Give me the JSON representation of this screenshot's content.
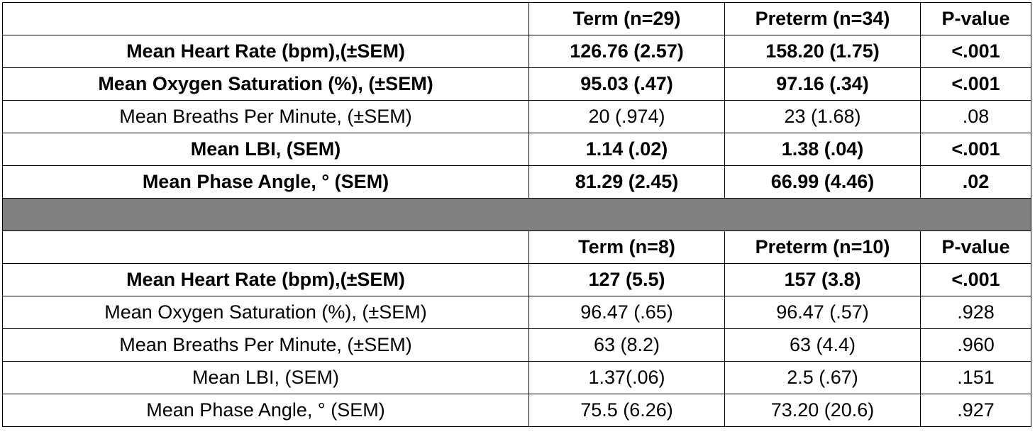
{
  "blocks": [
    {
      "header": [
        "Term (n=29)",
        "Preterm (n=34)",
        "P-value"
      ],
      "rows": [
        {
          "bold": true,
          "cells": [
            "Mean Heart Rate (bpm),(±SEM)",
            "126.76 (2.57)",
            "158.20 (1.75)",
            "<.001"
          ]
        },
        {
          "bold": true,
          "cells": [
            "Mean Oxygen Saturation (%),  (±SEM)",
            "95.03 (.47)",
            "97.16 (.34)",
            "<.001"
          ]
        },
        {
          "bold": false,
          "cells": [
            "Mean Breaths Per Minute,  (±SEM)",
            "20 (.974)",
            "23 (1.68)",
            ".08"
          ]
        },
        {
          "bold": true,
          "cells": [
            "Mean LBI, (SEM)",
            "1.14 (.02)",
            "1.38 (.04)",
            "<.001"
          ]
        },
        {
          "bold": true,
          "cells": [
            "Mean Phase Angle, ° (SEM)",
            "81.29 (2.45)",
            "66.99 (4.46)",
            ".02"
          ]
        }
      ]
    },
    {
      "header": [
        "Term (n=8)",
        "Preterm (n=10)",
        "P-value"
      ],
      "rows": [
        {
          "bold": true,
          "cells": [
            "Mean Heart Rate (bpm),(±SEM)",
            "127 (5.5)",
            "157 (3.8)",
            "<.001"
          ]
        },
        {
          "bold": false,
          "cells": [
            "Mean Oxygen Saturation (%),  (±SEM)",
            "96.47 (.65)",
            "96.47 (.57)",
            ".928"
          ]
        },
        {
          "bold": false,
          "cells": [
            "Mean Breaths Per Minute,  (±SEM)",
            "63 (8.2)",
            "63 (4.4)",
            ".960"
          ]
        },
        {
          "bold": false,
          "cells": [
            "Mean LBI, (SEM)",
            "1.37(.06)",
            "2.5 (.67)",
            ".151"
          ]
        },
        {
          "bold": false,
          "cells": [
            "Mean Phase Angle, ° (SEM)",
            "75.5 (6.26)",
            "73.20 (20.6)",
            ".927"
          ]
        }
      ]
    }
  ]
}
